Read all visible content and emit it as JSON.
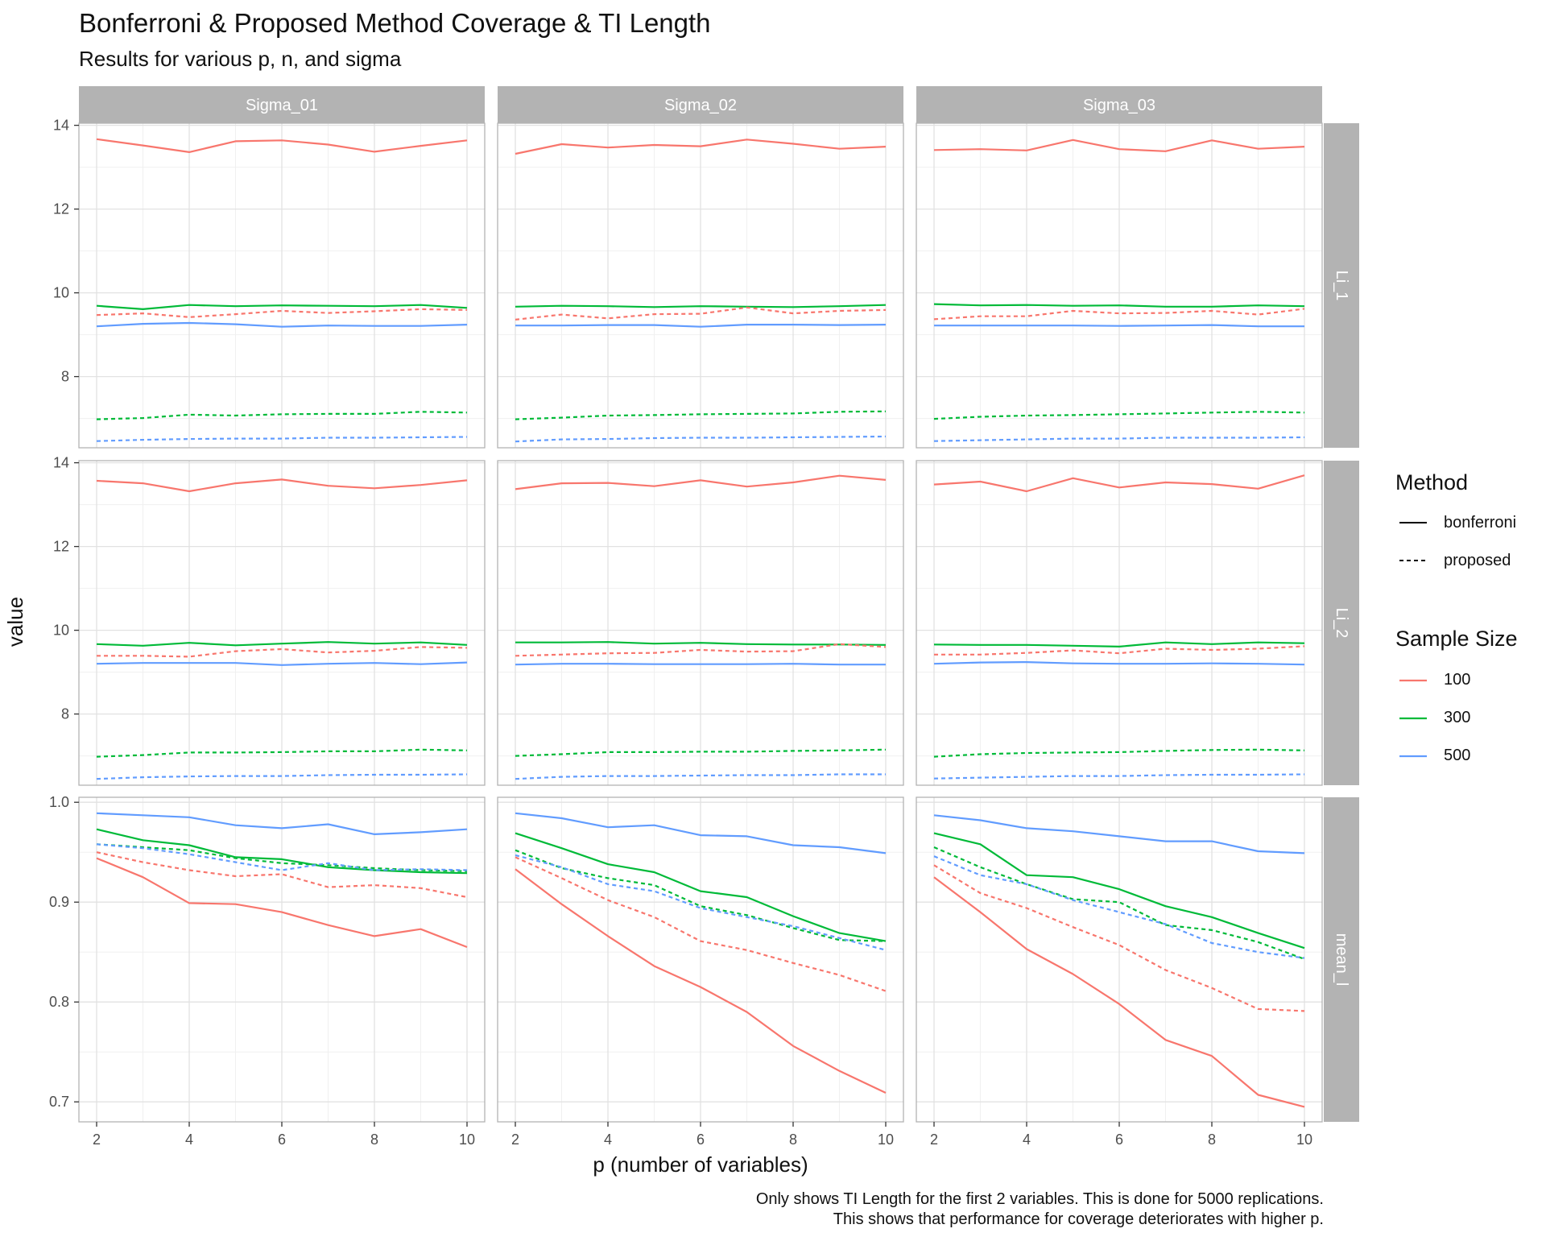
{
  "title": "Bonferroni & Proposed Method Coverage & TI Length",
  "subtitle": "Results for various p, n, and sigma",
  "caption_lines": [
    "Only shows TI Length for the first 2 variables. This is done for 5000 replications.",
    "This shows that performance for coverage deteriorates with higher p."
  ],
  "colors": {
    "100": "#F8766D",
    "300": "#00BA38",
    "500": "#619CFF"
  },
  "legend": {
    "method_title": "Method",
    "methods": [
      "bonferroni",
      "proposed"
    ],
    "size_title": "Sample Size",
    "sizes": [
      "100",
      "300",
      "500"
    ]
  },
  "chart_data": {
    "type": "line",
    "xlabel": "p (number of variables)",
    "ylabel": "value",
    "x": [
      2,
      3,
      4,
      5,
      6,
      7,
      8,
      9,
      10
    ],
    "x_ticks": [
      2,
      4,
      6,
      8,
      10
    ],
    "facet_columns": [
      "Sigma_01",
      "Sigma_02",
      "Sigma_03"
    ],
    "facet_rows": [
      {
        "name": "Li_1",
        "ylim": [
          6.3,
          14.05
        ],
        "ticks": [
          8,
          10,
          12,
          14
        ]
      },
      {
        "name": "Li_2",
        "ylim": [
          6.3,
          14.05
        ],
        "ticks": [
          8,
          10,
          12,
          14
        ]
      },
      {
        "name": "mean_l",
        "ylim": [
          0.68,
          1.005
        ],
        "ticks": [
          0.7,
          0.8,
          0.9,
          1.0
        ]
      }
    ],
    "grid": true,
    "legend_position": "right",
    "panels": [
      {
        "row": "Li_1",
        "col": "Sigma_01",
        "series": [
          {
            "n": "100",
            "method": "bonferroni",
            "values": [
              13.67,
              13.52,
              13.36,
              13.62,
              13.64,
              13.54,
              13.37,
              13.51,
              13.64
            ]
          },
          {
            "n": "300",
            "method": "bonferroni",
            "values": [
              9.69,
              9.61,
              9.71,
              9.68,
              9.7,
              9.69,
              9.68,
              9.71,
              9.64
            ]
          },
          {
            "n": "500",
            "method": "bonferroni",
            "values": [
              9.2,
              9.26,
              9.28,
              9.25,
              9.19,
              9.22,
              9.21,
              9.21,
              9.24
            ]
          },
          {
            "n": "100",
            "method": "proposed",
            "values": [
              9.47,
              9.51,
              9.42,
              9.49,
              9.57,
              9.52,
              9.56,
              9.61,
              9.59
            ]
          },
          {
            "n": "300",
            "method": "proposed",
            "values": [
              6.98,
              7.01,
              7.09,
              7.07,
              7.1,
              7.11,
              7.11,
              7.16,
              7.14
            ]
          },
          {
            "n": "500",
            "method": "proposed",
            "values": [
              6.46,
              6.49,
              6.51,
              6.52,
              6.52,
              6.54,
              6.54,
              6.55,
              6.56
            ]
          }
        ]
      },
      {
        "row": "Li_1",
        "col": "Sigma_02",
        "series": [
          {
            "n": "100",
            "method": "bonferroni",
            "values": [
              13.32,
              13.55,
              13.47,
              13.53,
              13.5,
              13.66,
              13.56,
              13.44,
              13.49
            ]
          },
          {
            "n": "300",
            "method": "bonferroni",
            "values": [
              9.67,
              9.69,
              9.68,
              9.66,
              9.68,
              9.67,
              9.66,
              9.68,
              9.71
            ]
          },
          {
            "n": "500",
            "method": "bonferroni",
            "values": [
              9.22,
              9.22,
              9.23,
              9.23,
              9.19,
              9.24,
              9.24,
              9.23,
              9.24
            ]
          },
          {
            "n": "100",
            "method": "proposed",
            "values": [
              9.36,
              9.48,
              9.39,
              9.49,
              9.5,
              9.65,
              9.51,
              9.57,
              9.59
            ]
          },
          {
            "n": "300",
            "method": "proposed",
            "values": [
              6.98,
              7.02,
              7.07,
              7.08,
              7.1,
              7.11,
              7.12,
              7.16,
              7.17
            ]
          },
          {
            "n": "500",
            "method": "proposed",
            "values": [
              6.45,
              6.5,
              6.51,
              6.53,
              6.54,
              6.54,
              6.55,
              6.56,
              6.57
            ]
          }
        ]
      },
      {
        "row": "Li_1",
        "col": "Sigma_03",
        "series": [
          {
            "n": "100",
            "method": "bonferroni",
            "values": [
              13.41,
              13.43,
              13.4,
              13.65,
              13.43,
              13.38,
              13.64,
              13.44,
              13.49
            ]
          },
          {
            "n": "300",
            "method": "bonferroni",
            "values": [
              9.73,
              9.7,
              9.71,
              9.69,
              9.7,
              9.67,
              9.67,
              9.7,
              9.68
            ]
          },
          {
            "n": "500",
            "method": "bonferroni",
            "values": [
              9.22,
              9.22,
              9.22,
              9.22,
              9.21,
              9.22,
              9.23,
              9.2,
              9.2
            ]
          },
          {
            "n": "100",
            "method": "proposed",
            "values": [
              9.37,
              9.44,
              9.44,
              9.57,
              9.51,
              9.52,
              9.57,
              9.48,
              9.62
            ]
          },
          {
            "n": "300",
            "method": "proposed",
            "values": [
              6.99,
              7.04,
              7.07,
              7.08,
              7.1,
              7.12,
              7.14,
              7.16,
              7.14
            ]
          },
          {
            "n": "500",
            "method": "proposed",
            "values": [
              6.46,
              6.48,
              6.5,
              6.52,
              6.52,
              6.54,
              6.54,
              6.54,
              6.55
            ]
          }
        ]
      },
      {
        "row": "Li_2",
        "col": "Sigma_01",
        "series": [
          {
            "n": "100",
            "method": "bonferroni",
            "values": [
              13.57,
              13.51,
              13.32,
              13.51,
              13.6,
              13.45,
              13.39,
              13.47,
              13.58
            ]
          },
          {
            "n": "300",
            "method": "bonferroni",
            "values": [
              9.67,
              9.63,
              9.7,
              9.64,
              9.68,
              9.72,
              9.68,
              9.71,
              9.65
            ]
          },
          {
            "n": "500",
            "method": "bonferroni",
            "values": [
              9.2,
              9.22,
              9.22,
              9.22,
              9.17,
              9.2,
              9.22,
              9.19,
              9.23
            ]
          },
          {
            "n": "100",
            "method": "proposed",
            "values": [
              9.39,
              9.39,
              9.37,
              9.5,
              9.55,
              9.47,
              9.51,
              9.6,
              9.58
            ]
          },
          {
            "n": "300",
            "method": "proposed",
            "values": [
              6.98,
              7.02,
              7.08,
              7.08,
              7.09,
              7.11,
              7.11,
              7.15,
              7.13
            ]
          },
          {
            "n": "500",
            "method": "proposed",
            "values": [
              6.45,
              6.49,
              6.51,
              6.52,
              6.52,
              6.54,
              6.55,
              6.55,
              6.56
            ]
          }
        ]
      },
      {
        "row": "Li_2",
        "col": "Sigma_02",
        "series": [
          {
            "n": "100",
            "method": "bonferroni",
            "values": [
              13.37,
              13.51,
              13.52,
              13.44,
              13.58,
              13.43,
              13.53,
              13.69,
              13.59
            ]
          },
          {
            "n": "300",
            "method": "bonferroni",
            "values": [
              9.71,
              9.71,
              9.72,
              9.68,
              9.7,
              9.67,
              9.66,
              9.66,
              9.65
            ]
          },
          {
            "n": "500",
            "method": "bonferroni",
            "values": [
              9.18,
              9.2,
              9.2,
              9.19,
              9.19,
              9.19,
              9.2,
              9.18,
              9.18
            ]
          },
          {
            "n": "100",
            "method": "proposed",
            "values": [
              9.39,
              9.42,
              9.45,
              9.46,
              9.53,
              9.49,
              9.5,
              9.67,
              9.6
            ]
          },
          {
            "n": "300",
            "method": "proposed",
            "values": [
              7.0,
              7.04,
              7.09,
              7.09,
              7.1,
              7.1,
              7.12,
              7.13,
              7.15
            ]
          },
          {
            "n": "500",
            "method": "proposed",
            "values": [
              6.45,
              6.5,
              6.52,
              6.52,
              6.53,
              6.54,
              6.54,
              6.56,
              6.56
            ]
          }
        ]
      },
      {
        "row": "Li_2",
        "col": "Sigma_03",
        "series": [
          {
            "n": "100",
            "method": "bonferroni",
            "values": [
              13.48,
              13.55,
              13.32,
              13.63,
              13.41,
              13.53,
              13.49,
              13.38,
              13.7
            ]
          },
          {
            "n": "300",
            "method": "bonferroni",
            "values": [
              9.66,
              9.65,
              9.65,
              9.63,
              9.61,
              9.71,
              9.67,
              9.71,
              9.69
            ]
          },
          {
            "n": "500",
            "method": "bonferroni",
            "values": [
              9.2,
              9.23,
              9.24,
              9.21,
              9.2,
              9.2,
              9.21,
              9.2,
              9.18
            ]
          },
          {
            "n": "100",
            "method": "proposed",
            "values": [
              9.42,
              9.42,
              9.46,
              9.52,
              9.45,
              9.56,
              9.53,
              9.56,
              9.62
            ]
          },
          {
            "n": "300",
            "method": "proposed",
            "values": [
              6.98,
              7.04,
              7.07,
              7.08,
              7.09,
              7.12,
              7.14,
              7.15,
              7.13
            ]
          },
          {
            "n": "500",
            "method": "proposed",
            "values": [
              6.46,
              6.48,
              6.5,
              6.52,
              6.52,
              6.54,
              6.55,
              6.55,
              6.56
            ]
          }
        ]
      },
      {
        "row": "mean_l",
        "col": "Sigma_01",
        "series": [
          {
            "n": "100",
            "method": "bonferroni",
            "values": [
              0.944,
              0.925,
              0.899,
              0.898,
              0.89,
              0.877,
              0.866,
              0.873,
              0.855
            ]
          },
          {
            "n": "300",
            "method": "bonferroni",
            "values": [
              0.973,
              0.962,
              0.957,
              0.945,
              0.943,
              0.935,
              0.932,
              0.93,
              0.929
            ]
          },
          {
            "n": "500",
            "method": "bonferroni",
            "values": [
              0.989,
              0.987,
              0.985,
              0.977,
              0.974,
              0.978,
              0.968,
              0.97,
              0.973
            ]
          },
          {
            "n": "100",
            "method": "proposed",
            "values": [
              0.95,
              0.94,
              0.932,
              0.926,
              0.928,
              0.915,
              0.917,
              0.914,
              0.905
            ]
          },
          {
            "n": "300",
            "method": "proposed",
            "values": [
              0.958,
              0.955,
              0.952,
              0.944,
              0.939,
              0.937,
              0.934,
              0.932,
              0.931
            ]
          },
          {
            "n": "500",
            "method": "proposed",
            "values": [
              0.958,
              0.954,
              0.948,
              0.94,
              0.932,
              0.939,
              0.932,
              0.933,
              0.932
            ]
          }
        ]
      },
      {
        "row": "mean_l",
        "col": "Sigma_02",
        "series": [
          {
            "n": "100",
            "method": "bonferroni",
            "values": [
              0.933,
              0.898,
              0.866,
              0.836,
              0.815,
              0.79,
              0.756,
              0.731,
              0.709
            ]
          },
          {
            "n": "300",
            "method": "bonferroni",
            "values": [
              0.969,
              0.954,
              0.938,
              0.93,
              0.911,
              0.905,
              0.886,
              0.869,
              0.861
            ]
          },
          {
            "n": "500",
            "method": "bonferroni",
            "values": [
              0.989,
              0.984,
              0.975,
              0.977,
              0.967,
              0.966,
              0.957,
              0.955,
              0.949
            ]
          },
          {
            "n": "100",
            "method": "proposed",
            "values": [
              0.945,
              0.924,
              0.902,
              0.885,
              0.861,
              0.852,
              0.839,
              0.827,
              0.811
            ]
          },
          {
            "n": "300",
            "method": "proposed",
            "values": [
              0.952,
              0.934,
              0.924,
              0.917,
              0.896,
              0.887,
              0.874,
              0.862,
              0.861
            ]
          },
          {
            "n": "500",
            "method": "proposed",
            "values": [
              0.947,
              0.935,
              0.918,
              0.911,
              0.894,
              0.885,
              0.876,
              0.864,
              0.852
            ]
          }
        ]
      },
      {
        "row": "mean_l",
        "col": "Sigma_03",
        "series": [
          {
            "n": "100",
            "method": "bonferroni",
            "values": [
              0.925,
              0.89,
              0.853,
              0.828,
              0.798,
              0.762,
              0.746,
              0.707,
              0.695
            ]
          },
          {
            "n": "300",
            "method": "bonferroni",
            "values": [
              0.969,
              0.958,
              0.927,
              0.925,
              0.913,
              0.896,
              0.885,
              0.869,
              0.854
            ]
          },
          {
            "n": "500",
            "method": "bonferroni",
            "values": [
              0.987,
              0.982,
              0.974,
              0.971,
              0.966,
              0.961,
              0.961,
              0.951,
              0.949
            ]
          },
          {
            "n": "100",
            "method": "proposed",
            "values": [
              0.937,
              0.909,
              0.894,
              0.875,
              0.857,
              0.832,
              0.814,
              0.793,
              0.791
            ]
          },
          {
            "n": "300",
            "method": "proposed",
            "values": [
              0.955,
              0.935,
              0.918,
              0.903,
              0.9,
              0.877,
              0.872,
              0.86,
              0.843
            ]
          },
          {
            "n": "500",
            "method": "proposed",
            "values": [
              0.946,
              0.927,
              0.918,
              0.902,
              0.89,
              0.878,
              0.859,
              0.85,
              0.844
            ]
          }
        ]
      }
    ]
  }
}
